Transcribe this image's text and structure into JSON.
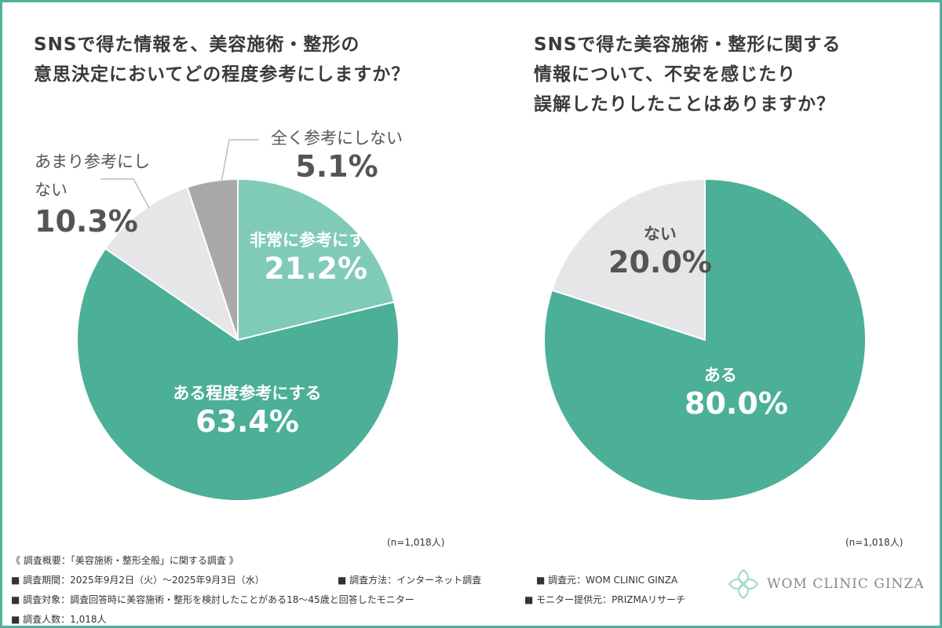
{
  "chart_data": [
    {
      "type": "pie",
      "title": "SNSで得た情報を、美容施術・整形の意思決定においてどの程度参考にしますか？",
      "title_lines": [
        "SNSで得た情報を、美容施術・整形の",
        "意思決定においてどの程度参考にしますか？"
      ],
      "categories": [
        "非常に参考にする",
        "ある程度参考にする",
        "あまり参考にしない",
        "全く参考にしない"
      ],
      "values": [
        21.2,
        63.4,
        10.3,
        5.1
      ],
      "value_labels": [
        "21.2%",
        "63.4%",
        "10.3%",
        "5.1%"
      ],
      "colors": [
        "#7fcbb8",
        "#4caf98",
        "#e6e6e8",
        "#a9a9ab"
      ],
      "n": "(n=1,018人)"
    },
    {
      "type": "pie",
      "title": "SNSで得た美容施術・整形に関する情報について、不安を感じたり誤解したりしたことはありますか？",
      "title_lines": [
        "SNSで得た美容施術・整形に関する",
        "情報について、不安を感じたり",
        "誤解したりしたことはありますか？"
      ],
      "categories": [
        "ある",
        "ない"
      ],
      "values": [
        80.0,
        20.0
      ],
      "value_labels": [
        "80.0%",
        "20.0%"
      ],
      "colors": [
        "#4caf98",
        "#e6e6e8"
      ],
      "n": "(n=1,018人)"
    }
  ],
  "survey": {
    "heading": "《 調査概要：「美容施術・整形全般」に関する調査 》",
    "period": "■ 調査期間：2025年9月2日（火）～2025年9月3日（水）",
    "method": "■ 調査方法：インターネット調査",
    "source": "■ 調査元：WOM CLINIC GINZA",
    "target": "■ 調査対象：調査回答時に美容施術・整形を検討したことがある18～45歳と回答したモニター",
    "provider": "■ モニター提供元：PRIZMAリサーチ",
    "count": "■ 調査人数：1,018人"
  },
  "logo": {
    "text": "WOM CLINIC GINZA"
  }
}
